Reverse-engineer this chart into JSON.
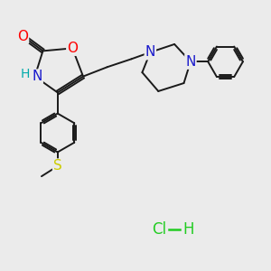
{
  "background_color": "#ebebeb",
  "bond_color": "#1a1a1a",
  "atom_colors": {
    "O": "#ff0000",
    "N": "#1a1acc",
    "H": "#00aaaa",
    "S": "#cccc00",
    "C": "#1a1a1a"
  },
  "font_size": 10,
  "hcl_color": "#22cc22",
  "figsize": [
    3.0,
    3.0
  ],
  "dpi": 100,
  "xlim": [
    0,
    10
  ],
  "ylim": [
    0,
    10
  ]
}
